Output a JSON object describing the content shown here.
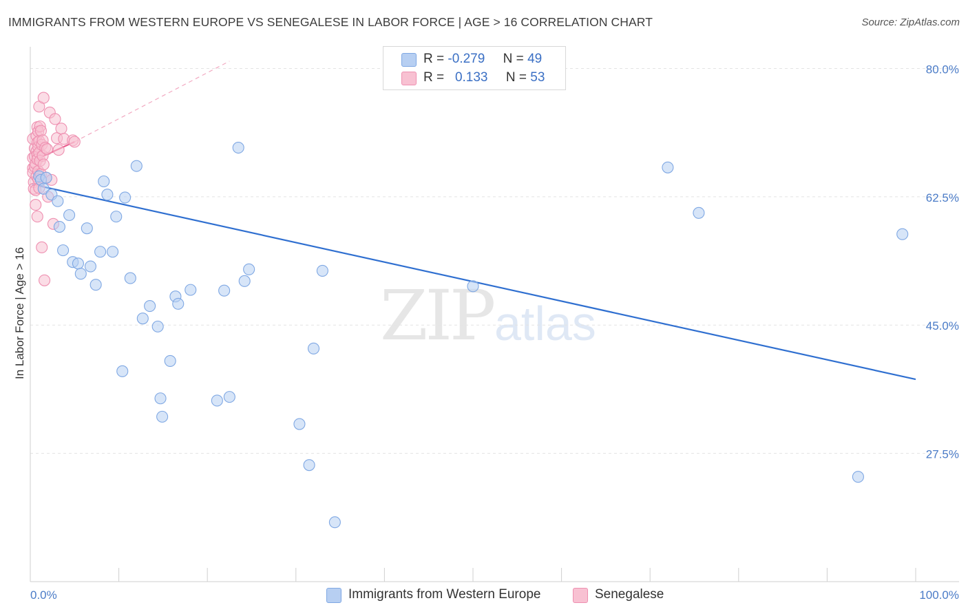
{
  "header": {
    "title": "IMMIGRANTS FROM WESTERN EUROPE VS SENEGALESE IN LABOR FORCE | AGE > 16 CORRELATION CHART",
    "source": "Source: ZipAtlas.com"
  },
  "watermark": {
    "part1": "ZIP",
    "part2": "atlas"
  },
  "legend_stats": [
    {
      "r_label": "R =",
      "r_value": "-0.279",
      "n_label": "N =",
      "n_value": "49",
      "color": "#a9c5ef"
    },
    {
      "r_label": "R =",
      "r_value": "0.133",
      "n_label": "N =",
      "n_value": "53",
      "color": "#f6b3c8"
    }
  ],
  "colors": {
    "blue_fill": "#b7cff2",
    "blue_stroke": "#7ea7e3",
    "blue_line": "#2f6fd0",
    "pink_fill": "#f8c1d2",
    "pink_stroke": "#ee8fb0",
    "pink_line": "#e85b8c",
    "axis_text": "#4a7bc7",
    "grid": "#e3e3e3"
  },
  "chart_data": {
    "type": "scatter",
    "title": "IMMIGRANTS FROM WESTERN EUROPE VS SENEGALESE IN LABOR FORCE | AGE > 16 CORRELATION CHART",
    "xlabel": "",
    "ylabel": "In Labor Force | Age > 16",
    "xlim": [
      0,
      100
    ],
    "ylim": [
      10,
      82.3
    ],
    "x_tick_labels": [
      "0.0%",
      "100.0%"
    ],
    "y_ticks": [
      27.5,
      45.0,
      62.5,
      80.0
    ],
    "y_tick_labels": [
      "27.5%",
      "45.0%",
      "62.5%",
      "80.0%"
    ],
    "grid": true,
    "series": [
      {
        "name": "Immigrants from Western Europe",
        "r": -0.279,
        "n": 49,
        "trend": {
          "x": [
            0.2,
            100
          ],
          "y": [
            64.2,
            37.6
          ]
        },
        "points": [
          [
            1.0,
            65.3
          ],
          [
            1.2,
            64.8
          ],
          [
            1.5,
            63.6
          ],
          [
            1.8,
            65.1
          ],
          [
            2.4,
            62.8
          ],
          [
            3.1,
            61.9
          ],
          [
            3.3,
            58.4
          ],
          [
            3.7,
            55.2
          ],
          [
            4.4,
            60.0
          ],
          [
            4.8,
            53.6
          ],
          [
            5.4,
            53.4
          ],
          [
            5.7,
            52.0
          ],
          [
            6.4,
            58.2
          ],
          [
            6.8,
            53.0
          ],
          [
            7.4,
            50.5
          ],
          [
            7.9,
            55.0
          ],
          [
            8.3,
            64.6
          ],
          [
            8.7,
            62.8
          ],
          [
            9.3,
            55.0
          ],
          [
            9.7,
            59.8
          ],
          [
            10.4,
            38.7
          ],
          [
            10.7,
            62.4
          ],
          [
            11.3,
            51.4
          ],
          [
            12.0,
            66.7
          ],
          [
            12.7,
            45.9
          ],
          [
            13.5,
            47.6
          ],
          [
            14.4,
            44.8
          ],
          [
            14.7,
            35.0
          ],
          [
            14.9,
            32.5
          ],
          [
            15.8,
            40.1
          ],
          [
            16.4,
            48.9
          ],
          [
            16.7,
            47.9
          ],
          [
            18.1,
            49.8
          ],
          [
            21.1,
            34.7
          ],
          [
            21.9,
            49.7
          ],
          [
            22.5,
            35.2
          ],
          [
            23.5,
            69.2
          ],
          [
            24.2,
            51.0
          ],
          [
            24.7,
            52.6
          ],
          [
            30.4,
            31.5
          ],
          [
            31.5,
            25.9
          ],
          [
            32.0,
            41.8
          ],
          [
            33.0,
            52.4
          ],
          [
            34.4,
            18.1
          ],
          [
            50.0,
            50.3
          ],
          [
            72.0,
            66.5
          ],
          [
            75.5,
            60.3
          ],
          [
            93.5,
            24.3
          ],
          [
            98.5,
            57.4
          ]
        ]
      },
      {
        "name": "Senegalese",
        "r": 0.133,
        "n": 53,
        "trend": {
          "x": [
            0.3,
            5.0
          ],
          "y": [
            67.4,
            70.0
          ]
        },
        "trend_ext": {
          "x": [
            5.0,
            22.5
          ],
          "y": [
            70.0,
            81.0
          ]
        },
        "points": [
          [
            0.3,
            70.4
          ],
          [
            0.3,
            67.8
          ],
          [
            0.3,
            66.4
          ],
          [
            0.3,
            65.8
          ],
          [
            0.4,
            64.5
          ],
          [
            0.4,
            63.6
          ],
          [
            0.5,
            69.1
          ],
          [
            0.5,
            68.0
          ],
          [
            0.5,
            66.6
          ],
          [
            0.6,
            67.0
          ],
          [
            0.6,
            63.4
          ],
          [
            0.6,
            61.4
          ],
          [
            0.7,
            70.8
          ],
          [
            0.7,
            68.7
          ],
          [
            0.7,
            65.3
          ],
          [
            0.8,
            72.0
          ],
          [
            0.8,
            69.9
          ],
          [
            0.8,
            68.2
          ],
          [
            0.8,
            67.6
          ],
          [
            0.8,
            59.8
          ],
          [
            0.9,
            71.4
          ],
          [
            0.9,
            69.3
          ],
          [
            0.9,
            66.0
          ],
          [
            0.9,
            64.9
          ],
          [
            1.0,
            74.8
          ],
          [
            1.0,
            70.1
          ],
          [
            1.0,
            68.5
          ],
          [
            1.0,
            63.7
          ],
          [
            1.1,
            72.1
          ],
          [
            1.1,
            67.4
          ],
          [
            1.2,
            71.5
          ],
          [
            1.2,
            65.6
          ],
          [
            1.3,
            69.6
          ],
          [
            1.3,
            55.6
          ],
          [
            1.4,
            70.2
          ],
          [
            1.4,
            68.1
          ],
          [
            1.5,
            76.0
          ],
          [
            1.5,
            66.9
          ],
          [
            1.6,
            51.1
          ],
          [
            1.7,
            69.2
          ],
          [
            1.8,
            65.1
          ],
          [
            1.9,
            69.0
          ],
          [
            2.0,
            62.5
          ],
          [
            2.2,
            74.0
          ],
          [
            2.4,
            64.8
          ],
          [
            2.6,
            58.8
          ],
          [
            2.8,
            73.1
          ],
          [
            3.0,
            70.5
          ],
          [
            3.2,
            68.9
          ],
          [
            3.5,
            71.8
          ],
          [
            3.8,
            70.4
          ],
          [
            4.8,
            70.2
          ],
          [
            5.0,
            70.0
          ]
        ]
      }
    ]
  },
  "bottom_legend": [
    {
      "label": "Immigrants from Western Europe",
      "color": "#b7cff2"
    },
    {
      "label": "Senegalese",
      "color": "#f8c1d2"
    }
  ]
}
